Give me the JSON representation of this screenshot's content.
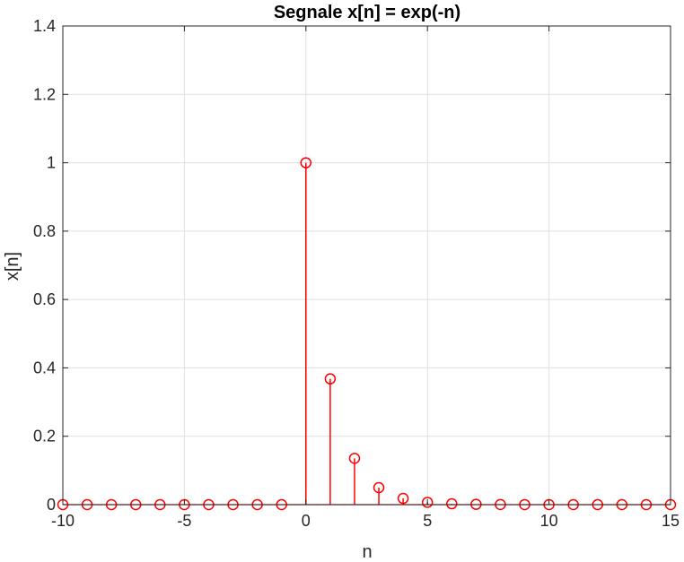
{
  "chart_data": {
    "type": "stem",
    "title": "Segnale x[n] = exp(-n)",
    "xlabel": "n",
    "ylabel": "x[n]",
    "xlim": [
      -10,
      15
    ],
    "ylim": [
      0,
      1.4
    ],
    "xticks": [
      -10,
      -5,
      0,
      5,
      10,
      15
    ],
    "xtick_labels": [
      "-10",
      "-5",
      "0",
      "5",
      "10",
      "15"
    ],
    "yticks": [
      0,
      0.2,
      0.4,
      0.6,
      0.8,
      1,
      1.2,
      1.4
    ],
    "ytick_labels": [
      "0",
      "0.2",
      "0.4",
      "0.6",
      "0.8",
      "1",
      "1.2",
      "1.4"
    ],
    "grid": true,
    "series": [
      {
        "color": "#ff0000",
        "marker": "circle-open",
        "x": [
          -10,
          -9,
          -8,
          -7,
          -6,
          -5,
          -4,
          -3,
          -2,
          -1,
          0,
          1,
          2,
          3,
          4,
          5,
          6,
          7,
          8,
          9,
          10,
          11,
          12,
          13,
          14,
          15
        ],
        "y": [
          0,
          0,
          0,
          0,
          0,
          0,
          0,
          0,
          0,
          0,
          1,
          0.3679,
          0.1353,
          0.0498,
          0.0183,
          0.0067,
          0.0025,
          0.0009,
          0.0003,
          0.0001,
          4.54e-05,
          1.67e-05,
          6.1e-06,
          2.3e-06,
          8e-07,
          3e-07
        ]
      }
    ]
  }
}
